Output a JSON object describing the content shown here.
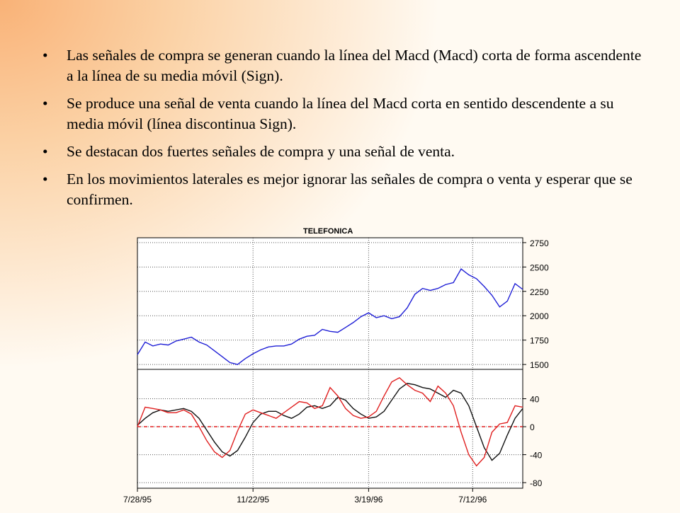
{
  "slide": {
    "bullets": [
      "Las señales de compra se generan cuando la línea del Macd (Macd) corta de forma ascendente a la línea de su media móvil (Sign).",
      "Se produce una señal de venta cuando la línea del Macd corta en sentido descendente a su media móvil (línea discontinua Sign).",
      "Se destacan dos fuertes señales de compra y una señal de venta.",
      "En los movimientos laterales es mejor ignorar las señales de compra o venta y esperar que se confirmen."
    ],
    "bullet_glyph": "•"
  },
  "chart_data": [
    {
      "type": "line",
      "title": "TELEFONICA",
      "x_ticks": [
        "7/28/95",
        "11/22/95",
        "3/19/96",
        "7/12/96"
      ],
      "y_ticks": [
        1500,
        1750,
        2000,
        2250,
        2500,
        2750
      ],
      "ylim": [
        1450,
        2800
      ],
      "grid": true,
      "series": [
        {
          "color": "#1f1fd6",
          "x": [
            0,
            2,
            4,
            6,
            8,
            10,
            12,
            14,
            16,
            18,
            20,
            22,
            24,
            26,
            28,
            30,
            32,
            34,
            36,
            38,
            40,
            42,
            44,
            46,
            48,
            50,
            52,
            54,
            56,
            58,
            60,
            62,
            64,
            66,
            68,
            70,
            72,
            74,
            76,
            78,
            80,
            82,
            84,
            86,
            88,
            90,
            92,
            94,
            96,
            98,
            100
          ],
          "y": [
            1600,
            1730,
            1690,
            1710,
            1700,
            1740,
            1760,
            1780,
            1730,
            1700,
            1640,
            1580,
            1520,
            1500,
            1560,
            1610,
            1650,
            1680,
            1690,
            1690,
            1710,
            1760,
            1790,
            1800,
            1860,
            1840,
            1830,
            1880,
            1930,
            1990,
            2030,
            1980,
            2000,
            1970,
            1990,
            2080,
            2220,
            2280,
            2260,
            2280,
            2320,
            2340,
            2480,
            2420,
            2380,
            2300,
            2210,
            2090,
            2150,
            2330,
            2270
          ]
        }
      ]
    },
    {
      "type": "line",
      "y_ticks": [
        -80,
        -40,
        0,
        40
      ],
      "ylim": [
        -88,
        82
      ],
      "grid": true,
      "series": [
        {
          "color": "#111111",
          "x": [
            0,
            2,
            4,
            6,
            8,
            10,
            12,
            14,
            16,
            18,
            20,
            22,
            24,
            26,
            28,
            30,
            32,
            34,
            36,
            38,
            40,
            42,
            44,
            46,
            48,
            50,
            52,
            54,
            56,
            58,
            60,
            62,
            64,
            66,
            68,
            70,
            72,
            74,
            76,
            78,
            80,
            82,
            84,
            86,
            88,
            90,
            92,
            94,
            96,
            98,
            100
          ],
          "y": [
            2,
            12,
            20,
            24,
            22,
            24,
            26,
            22,
            12,
            -5,
            -22,
            -36,
            -42,
            -34,
            -15,
            6,
            18,
            22,
            22,
            16,
            12,
            18,
            28,
            30,
            26,
            30,
            42,
            38,
            26,
            18,
            12,
            14,
            22,
            38,
            54,
            62,
            60,
            56,
            54,
            48,
            42,
            52,
            48,
            30,
            0,
            -30,
            -48,
            -38,
            -12,
            12,
            26
          ]
        },
        {
          "color": "#e02020",
          "x": [
            0,
            2,
            4,
            6,
            8,
            10,
            12,
            14,
            16,
            18,
            20,
            22,
            24,
            26,
            28,
            30,
            32,
            34,
            36,
            38,
            40,
            42,
            44,
            46,
            48,
            50,
            52,
            54,
            56,
            58,
            60,
            62,
            64,
            66,
            68,
            70,
            72,
            74,
            76,
            78,
            80,
            82,
            84,
            86,
            88,
            90,
            92,
            94,
            96,
            98,
            100
          ],
          "y": [
            0,
            28,
            26,
            24,
            20,
            20,
            24,
            18,
            0,
            -20,
            -36,
            -44,
            -34,
            -6,
            18,
            24,
            20,
            16,
            12,
            20,
            28,
            36,
            34,
            26,
            30,
            56,
            44,
            26,
            16,
            12,
            14,
            22,
            44,
            64,
            70,
            60,
            52,
            48,
            36,
            58,
            48,
            30,
            -8,
            -40,
            -56,
            -44,
            -8,
            4,
            6,
            30,
            28
          ]
        },
        {
          "name": "",
          "color": "#e02020",
          "dashed": true,
          "x": [
            0,
            100
          ],
          "y": [
            0,
            0
          ]
        }
      ]
    }
  ]
}
